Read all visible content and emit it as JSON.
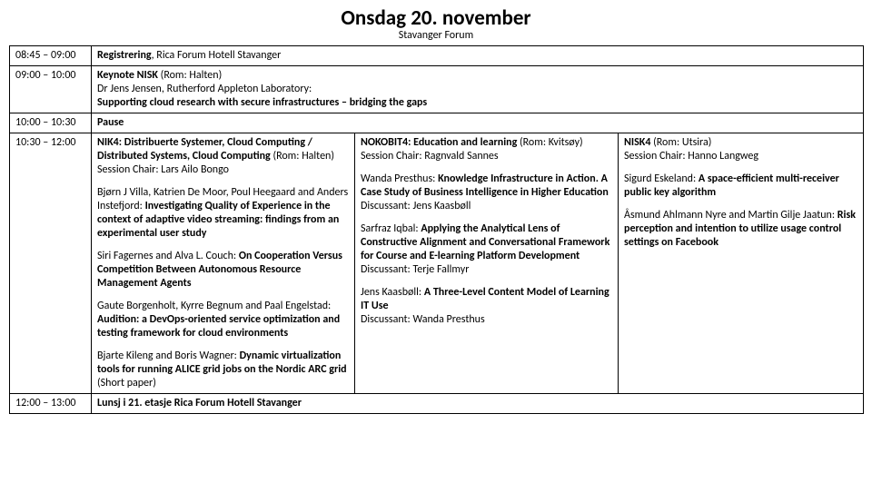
{
  "header": {
    "title": "Onsdag 20. november",
    "subtitle": "Stavanger Forum"
  },
  "rows": {
    "r1": {
      "time": "08:45 – 09:00",
      "text_plain": ", Rica Forum Hotell Stavanger",
      "text_bold": "Registrering"
    },
    "r2": {
      "time": "09:00 – 10:00",
      "l1a": "Keynote NISK",
      "l1b": " (Rom: Halten)",
      "l2": "Dr Jens Jensen, Rutherford Appleton Laboratory:",
      "l3": "Supporting cloud research with secure infrastructures – bridging the gaps"
    },
    "r3": {
      "time": "10:00 – 10:30",
      "text": "Pause"
    },
    "r4": {
      "time": "10:30 – 12:00",
      "colA": {
        "p1a": "NIK4: Distribuerte Systemer, Cloud Computing / Distributed Systems, Cloud Computing",
        "p1b": " (Rom: Halten)",
        "p2": "Session Chair: Lars Ailo Bongo",
        "p3a": "Bjørn J Villa, Katrien De Moor, Poul Heegaard and Anders Instefjord: ",
        "p3b": "Investigating Quality of Experience in the context of adaptive video streaming: findings from an experimental user study",
        "p4a": "Siri Fagernes and Alva L. Couch: ",
        "p4b": "On Cooperation Versus Competition Between Autonomous Resource Management Agents",
        "p5a": "Gaute Borgenholt, Kyrre Begnum and Paal Engelstad: ",
        "p5b": "Audition: a DevOps-oriented service optimization and testing framework for cloud environments",
        "p6a": "Bjarte Kileng and Boris Wagner: ",
        "p6b": "Dynamic virtualization tools for running ALICE grid jobs on the Nordic ARC grid",
        "p6c": " (Short paper)"
      },
      "colB": {
        "p1a": "NOKOBIT4: Education and learning",
        "p1b": " (Rom: Kvitsøy)",
        "p2": "Session Chair: Ragnvald Sannes",
        "p3a": "Wanda Presthus: ",
        "p3b": "Knowledge Infrastructure in Action. A Case Study of Business Intelligence in Higher Education",
        "p3c": "Discussant: Jens Kaasbøll",
        "p4a": "Sarfraz Iqbal: ",
        "p4b": "Applying the Analytical Lens of Constructive Alignment and Conversational Framework for Course and E-learning Platform Development",
        "p4c": "Discussant: Terje Fallmyr",
        "p5a": "Jens Kaasbøll: ",
        "p5b": "A Three-Level Content Model of Learning IT Use",
        "p5c": "Discussant: Wanda Presthus"
      },
      "colC": {
        "p1a": "NISK4",
        "p1b": " (Rom: Utsira)",
        "p2": "Session Chair: Hanno Langweg",
        "p3a": "Sigurd Eskeland: ",
        "p3b": "A space-efficient multi-receiver public key algorithm",
        "p4a": "Åsmund Ahlmann Nyre and Martin Gilje Jaatun: ",
        "p4b": "Risk perception and intention to utilize usage control settings on Facebook"
      }
    },
    "r5": {
      "time": "12:00 – 13:00",
      "text": "Lunsj i 21. etasje Rica Forum Hotell Stavanger"
    }
  }
}
